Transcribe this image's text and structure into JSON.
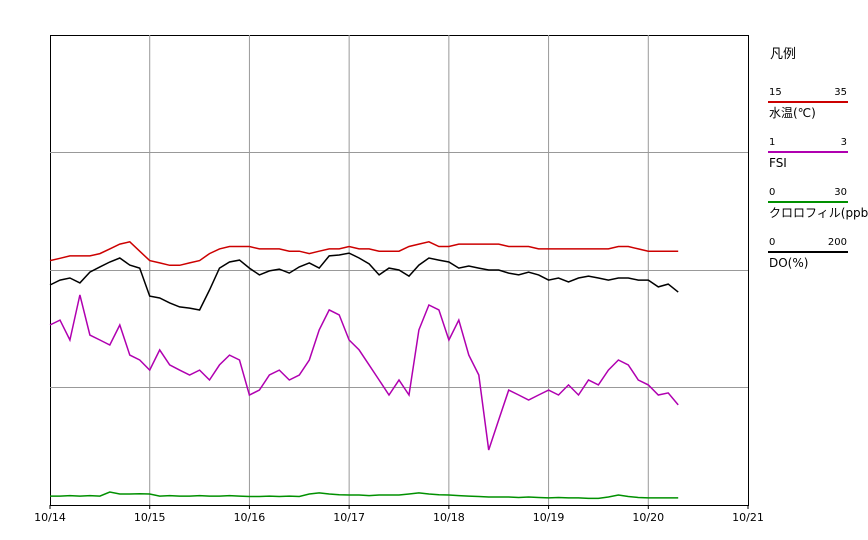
{
  "chart_data": {
    "type": "line",
    "legend_title": "凡例",
    "xlim": [
      0,
      7
    ],
    "xticks": [
      {
        "value": 0,
        "label": "10/14"
      },
      {
        "value": 1,
        "label": "10/15"
      },
      {
        "value": 2,
        "label": "10/16"
      },
      {
        "value": 3,
        "label": "10/17"
      },
      {
        "value": 4,
        "label": "10/18"
      },
      {
        "value": 5,
        "label": "10/19"
      },
      {
        "value": 6,
        "label": "10/20"
      },
      {
        "value": 7,
        "label": "10/21"
      }
    ],
    "x": [
      0,
      0.1,
      0.2,
      0.3,
      0.4,
      0.5,
      0.6,
      0.7,
      0.8,
      0.9,
      1,
      1.1,
      1.2,
      1.3,
      1.4,
      1.5,
      1.6,
      1.7,
      1.8,
      1.9,
      2,
      2.1,
      2.2,
      2.3,
      2.4,
      2.5,
      2.6,
      2.7,
      2.8,
      2.9,
      3,
      3.1,
      3.2,
      3.3,
      3.4,
      3.5,
      3.6,
      3.7,
      3.8,
      3.9,
      4,
      4.1,
      4.2,
      4.3,
      4.4,
      4.5,
      4.6,
      4.7,
      4.8,
      4.9,
      5,
      5.1,
      5.2,
      5.3,
      5.4,
      5.5,
      5.6,
      5.7,
      5.8,
      5.9,
      6,
      6.1,
      6.2,
      6.3
    ],
    "series": [
      {
        "name": "水温(℃)",
        "color": "#cc0000",
        "ylim": [
          15,
          35
        ],
        "values": [
          25.4,
          25.5,
          25.6,
          25.6,
          25.6,
          25.7,
          25.9,
          26.1,
          26.2,
          25.8,
          25.4,
          25.3,
          25.2,
          25.2,
          25.3,
          25.4,
          25.7,
          25.9,
          26.0,
          26.0,
          26.0,
          25.9,
          25.9,
          25.9,
          25.8,
          25.8,
          25.7,
          25.8,
          25.9,
          25.9,
          26.0,
          25.9,
          25.9,
          25.8,
          25.8,
          25.8,
          26.0,
          26.1,
          26.2,
          26.0,
          26.0,
          26.1,
          26.1,
          26.1,
          26.1,
          26.1,
          26.0,
          26.0,
          26.0,
          25.9,
          25.9,
          25.9,
          25.9,
          25.9,
          25.9,
          25.9,
          25.9,
          26.0,
          26.0,
          25.9,
          25.8,
          25.8,
          25.8,
          25.8
        ]
      },
      {
        "name": "FSI",
        "color": "#b000b0",
        "ylim": [
          1,
          3
        ],
        "values": [
          1.766,
          1.787,
          1.702,
          1.894,
          1.723,
          1.702,
          1.681,
          1.766,
          1.638,
          1.617,
          1.574,
          1.66,
          1.596,
          1.574,
          1.553,
          1.574,
          1.532,
          1.596,
          1.638,
          1.617,
          1.468,
          1.489,
          1.553,
          1.574,
          1.532,
          1.553,
          1.617,
          1.745,
          1.83,
          1.809,
          1.702,
          1.66,
          1.596,
          1.532,
          1.468,
          1.532,
          1.468,
          1.745,
          1.851,
          1.83,
          1.702,
          1.787,
          1.638,
          1.553,
          1.234,
          1.362,
          1.489,
          1.468,
          1.447,
          1.468,
          1.489,
          1.468,
          1.511,
          1.468,
          1.532,
          1.511,
          1.574,
          1.617,
          1.596,
          1.532,
          1.511,
          1.468,
          1.477,
          1.426
        ]
      },
      {
        "name": "クロロフィル(ppb)",
        "color": "#009000",
        "ylim": [
          0,
          30
        ],
        "values": [
          0.57,
          0.57,
          0.6,
          0.57,
          0.6,
          0.57,
          0.83,
          0.7,
          0.7,
          0.72,
          0.7,
          0.57,
          0.6,
          0.57,
          0.57,
          0.6,
          0.57,
          0.57,
          0.6,
          0.57,
          0.54,
          0.54,
          0.57,
          0.54,
          0.57,
          0.54,
          0.7,
          0.77,
          0.7,
          0.66,
          0.64,
          0.64,
          0.6,
          0.64,
          0.64,
          0.64,
          0.7,
          0.77,
          0.7,
          0.66,
          0.64,
          0.6,
          0.57,
          0.54,
          0.51,
          0.51,
          0.51,
          0.48,
          0.51,
          0.48,
          0.45,
          0.48,
          0.45,
          0.45,
          0.42,
          0.42,
          0.51,
          0.64,
          0.54,
          0.48,
          0.45,
          0.45,
          0.45,
          0.45
        ]
      },
      {
        "name": "DO(%)",
        "color": "#000000",
        "ylim": [
          0,
          200
        ],
        "values": [
          93.6,
          95.7,
          96.6,
          94.5,
          99.1,
          101.3,
          103.4,
          105.1,
          102.1,
          100.8,
          88.9,
          88.1,
          86.0,
          84.3,
          83.8,
          83.0,
          91.5,
          100.8,
          103.4,
          104.2,
          100.8,
          97.9,
          99.6,
          100.4,
          98.7,
          101.3,
          103.0,
          100.8,
          106.0,
          106.4,
          107.2,
          105.1,
          102.6,
          97.9,
          100.8,
          100.0,
          97.4,
          102.1,
          105.1,
          104.2,
          103.4,
          100.8,
          101.7,
          100.8,
          100.0,
          100.0,
          98.7,
          97.9,
          99.1,
          97.9,
          95.7,
          96.6,
          94.9,
          96.6,
          97.4,
          96.6,
          95.7,
          96.6,
          96.6,
          95.7,
          95.7,
          92.8,
          94.0,
          90.6
        ]
      }
    ]
  }
}
